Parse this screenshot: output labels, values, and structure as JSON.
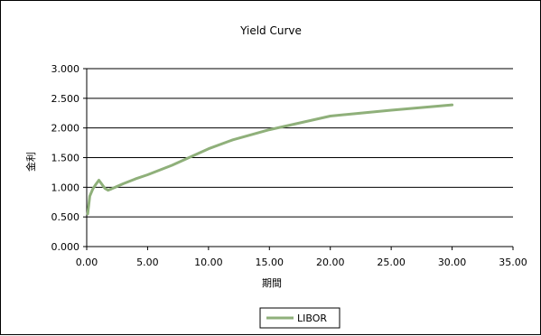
{
  "chart_data": {
    "type": "line",
    "title": "Yield Curve",
    "xlabel": "期間",
    "ylabel": "金利",
    "xlim": [
      0,
      35
    ],
    "ylim": [
      0,
      3
    ],
    "x_ticks": [
      "0.00",
      "5.00",
      "10.00",
      "15.00",
      "20.00",
      "25.00",
      "30.00",
      "35.00"
    ],
    "y_ticks": [
      "0.000",
      "0.500",
      "1.000",
      "1.500",
      "2.000",
      "2.500",
      "3.000"
    ],
    "grid": "horizontal",
    "legend_position": "bottom",
    "series": [
      {
        "name": "LIBOR",
        "color": "#8fb07a",
        "x": [
          0.08,
          0.25,
          0.5,
          0.75,
          1.0,
          1.25,
          1.5,
          1.75,
          2.0,
          3.0,
          4.0,
          5.0,
          7.0,
          10.0,
          12.0,
          15.0,
          20.0,
          25.0,
          30.0
        ],
        "y": [
          0.55,
          0.85,
          0.97,
          1.05,
          1.12,
          1.05,
          0.98,
          0.95,
          0.97,
          1.06,
          1.14,
          1.21,
          1.37,
          1.65,
          1.8,
          1.97,
          2.2,
          2.3,
          2.39
        ]
      }
    ]
  }
}
